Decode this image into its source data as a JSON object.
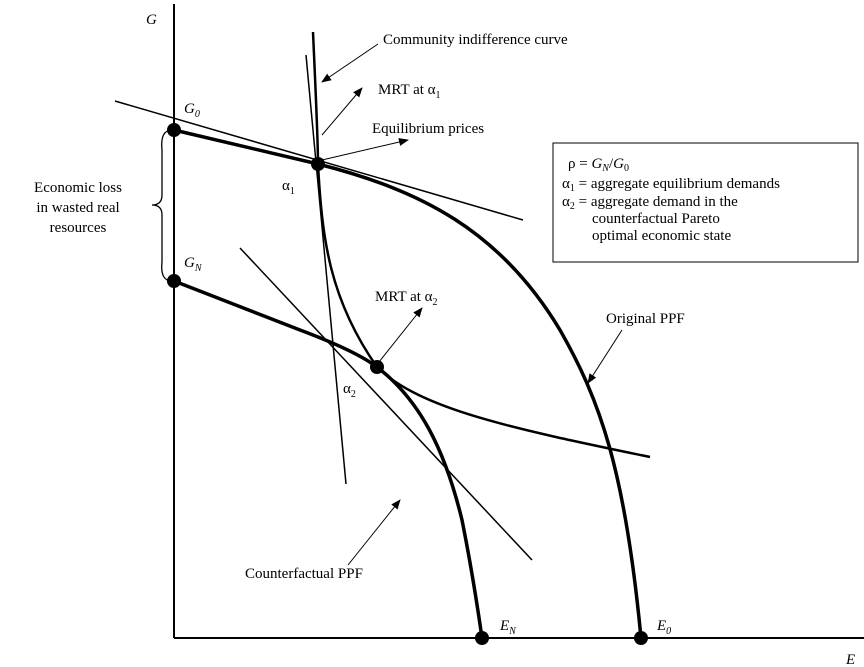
{
  "axes": {
    "y_label": "G",
    "x_label": "E"
  },
  "points": {
    "G0": {
      "main": "G",
      "sub": "0"
    },
    "GN": {
      "main": "G",
      "sub": "N"
    },
    "alpha1": {
      "main": "α",
      "sub": "1"
    },
    "alpha2": {
      "main": "α",
      "sub": "2"
    },
    "EN": {
      "main": "E",
      "sub": "N"
    },
    "E0": {
      "main": "E",
      "sub": "0"
    }
  },
  "annotations": {
    "indifference": "Community indifference curve",
    "mrt1": {
      "text": "MRT at ",
      "main": "α",
      "sub": "1"
    },
    "prices": "Equilibrium prices",
    "mrt2": {
      "text": "MRT at ",
      "main": "α",
      "sub": "2"
    },
    "original_ppf": "Original PPF",
    "counterfactual_ppf": "Counterfactual PPF",
    "loss": [
      "Economic loss",
      "in wasted real",
      "resources"
    ]
  },
  "legend": {
    "rho": {
      "lhs": "ρ = ",
      "num": "G",
      "num_sub": "N",
      "slash": "/",
      "den": "G",
      "den_sub": "0"
    },
    "a1": {
      "main": "α",
      "sub": "1",
      "text": " = aggregate equilibrium demands"
    },
    "a2": {
      "main": "α",
      "sub": "2",
      "text": " = aggregate demand in the",
      "more": [
        "counterfactual Pareto",
        "optimal economic state"
      ]
    }
  }
}
